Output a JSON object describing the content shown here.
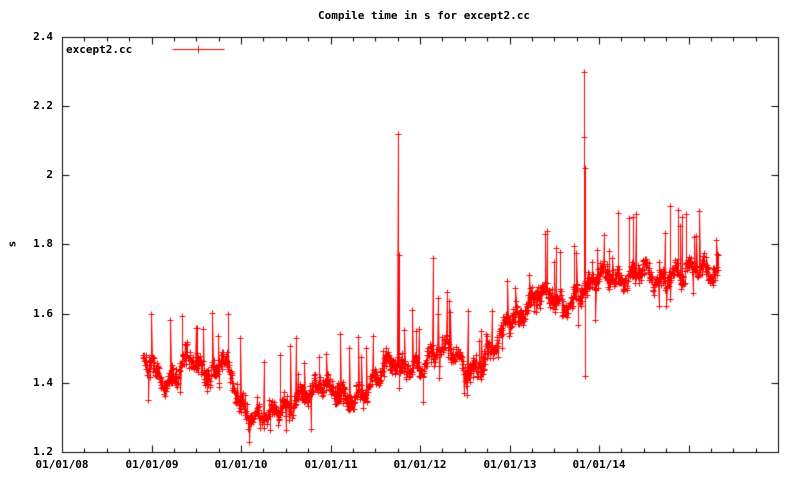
{
  "title": "Compile time in s for except2.cc",
  "legend": {
    "label": "except2.cc",
    "position": "top-left-inside",
    "marker": "plus-on-line"
  },
  "colors": {
    "series": "#ff0000",
    "axis": "#000000",
    "background": "#ffffff",
    "text": "#000000"
  },
  "chart_data": {
    "type": "line",
    "style": "linespoints with plus markers, dense noisy daily series",
    "title": "Compile time in s for except2.cc",
    "xlabel": "",
    "ylabel": "s",
    "grid": false,
    "legend_position": "top-left-inside",
    "x_axis": {
      "format": "MM/DD/YY",
      "tick_labels": [
        "01/01/08",
        "01/01/09",
        "01/01/10",
        "01/01/11",
        "01/01/12",
        "01/01/13",
        "01/01/14"
      ],
      "tick_years": [
        2008,
        2009,
        2010,
        2011,
        2012,
        2013,
        2014
      ],
      "unlabeled_major_tick_years": [
        2015
      ],
      "minor_ticks_per_year": 4,
      "range_years": [
        2008.0,
        2016.0
      ]
    },
    "y_axis": {
      "label": "s",
      "tick_labels": [
        "1.2",
        "1.4",
        "1.6",
        "1.8",
        "2",
        "2.2",
        "2.4"
      ],
      "tick_values": [
        1.2,
        1.4,
        1.6,
        1.8,
        2.0,
        2.2,
        2.4
      ],
      "range": [
        1.2,
        2.4
      ]
    },
    "series": [
      {
        "name": "except2.cc",
        "color": "#ff0000",
        "marker": "plus",
        "data_range_years": [
          2008.905,
          2015.33
        ],
        "points_approx": 1565,
        "noise_half_band": 0.045,
        "trend": [
          [
            2008.9,
            1.46
          ],
          [
            2009.0,
            1.44
          ],
          [
            2009.15,
            1.4
          ],
          [
            2009.3,
            1.44
          ],
          [
            2009.4,
            1.47
          ],
          [
            2009.55,
            1.43
          ],
          [
            2009.7,
            1.43
          ],
          [
            2009.8,
            1.49
          ],
          [
            2009.9,
            1.4
          ],
          [
            2010.0,
            1.31
          ],
          [
            2010.15,
            1.3
          ],
          [
            2010.3,
            1.33
          ],
          [
            2010.45,
            1.33
          ],
          [
            2010.6,
            1.33
          ],
          [
            2010.75,
            1.38
          ],
          [
            2010.9,
            1.41
          ],
          [
            2011.05,
            1.37
          ],
          [
            2011.2,
            1.34
          ],
          [
            2011.35,
            1.38
          ],
          [
            2011.5,
            1.42
          ],
          [
            2011.65,
            1.45
          ],
          [
            2011.8,
            1.44
          ],
          [
            2012.0,
            1.46
          ],
          [
            2012.15,
            1.48
          ],
          [
            2012.3,
            1.49
          ],
          [
            2012.45,
            1.47
          ],
          [
            2012.6,
            1.44
          ],
          [
            2012.75,
            1.47
          ],
          [
            2012.85,
            1.5
          ],
          [
            2012.95,
            1.58
          ],
          [
            2013.05,
            1.6
          ],
          [
            2013.15,
            1.61
          ],
          [
            2013.3,
            1.65
          ],
          [
            2013.45,
            1.65
          ],
          [
            2013.6,
            1.63
          ],
          [
            2013.75,
            1.66
          ],
          [
            2013.9,
            1.67
          ],
          [
            2014.05,
            1.72
          ],
          [
            2014.2,
            1.71
          ],
          [
            2014.35,
            1.7
          ],
          [
            2014.5,
            1.72
          ],
          [
            2014.65,
            1.7
          ],
          [
            2014.8,
            1.73
          ],
          [
            2014.95,
            1.71
          ],
          [
            2015.1,
            1.73
          ],
          [
            2015.25,
            1.73
          ],
          [
            2015.33,
            1.74
          ]
        ],
        "outliers": [
          [
            2009.51,
            1.56
          ],
          [
            2009.85,
            1.6
          ],
          [
            2010.61,
            1.53
          ],
          [
            2011.75,
            2.12
          ],
          [
            2011.76,
            1.77
          ],
          [
            2012.14,
            1.76
          ],
          [
            2013.42,
            1.84
          ],
          [
            2013.83,
            2.3
          ],
          [
            2013.834,
            2.11
          ],
          [
            2013.838,
            2.02
          ],
          [
            2013.842,
            1.42
          ],
          [
            2014.21,
            1.89
          ],
          [
            2014.38,
            1.88
          ],
          [
            2014.79,
            1.91
          ],
          [
            2014.88,
            1.9
          ],
          [
            2014.93,
            1.88
          ]
        ]
      }
    ]
  }
}
